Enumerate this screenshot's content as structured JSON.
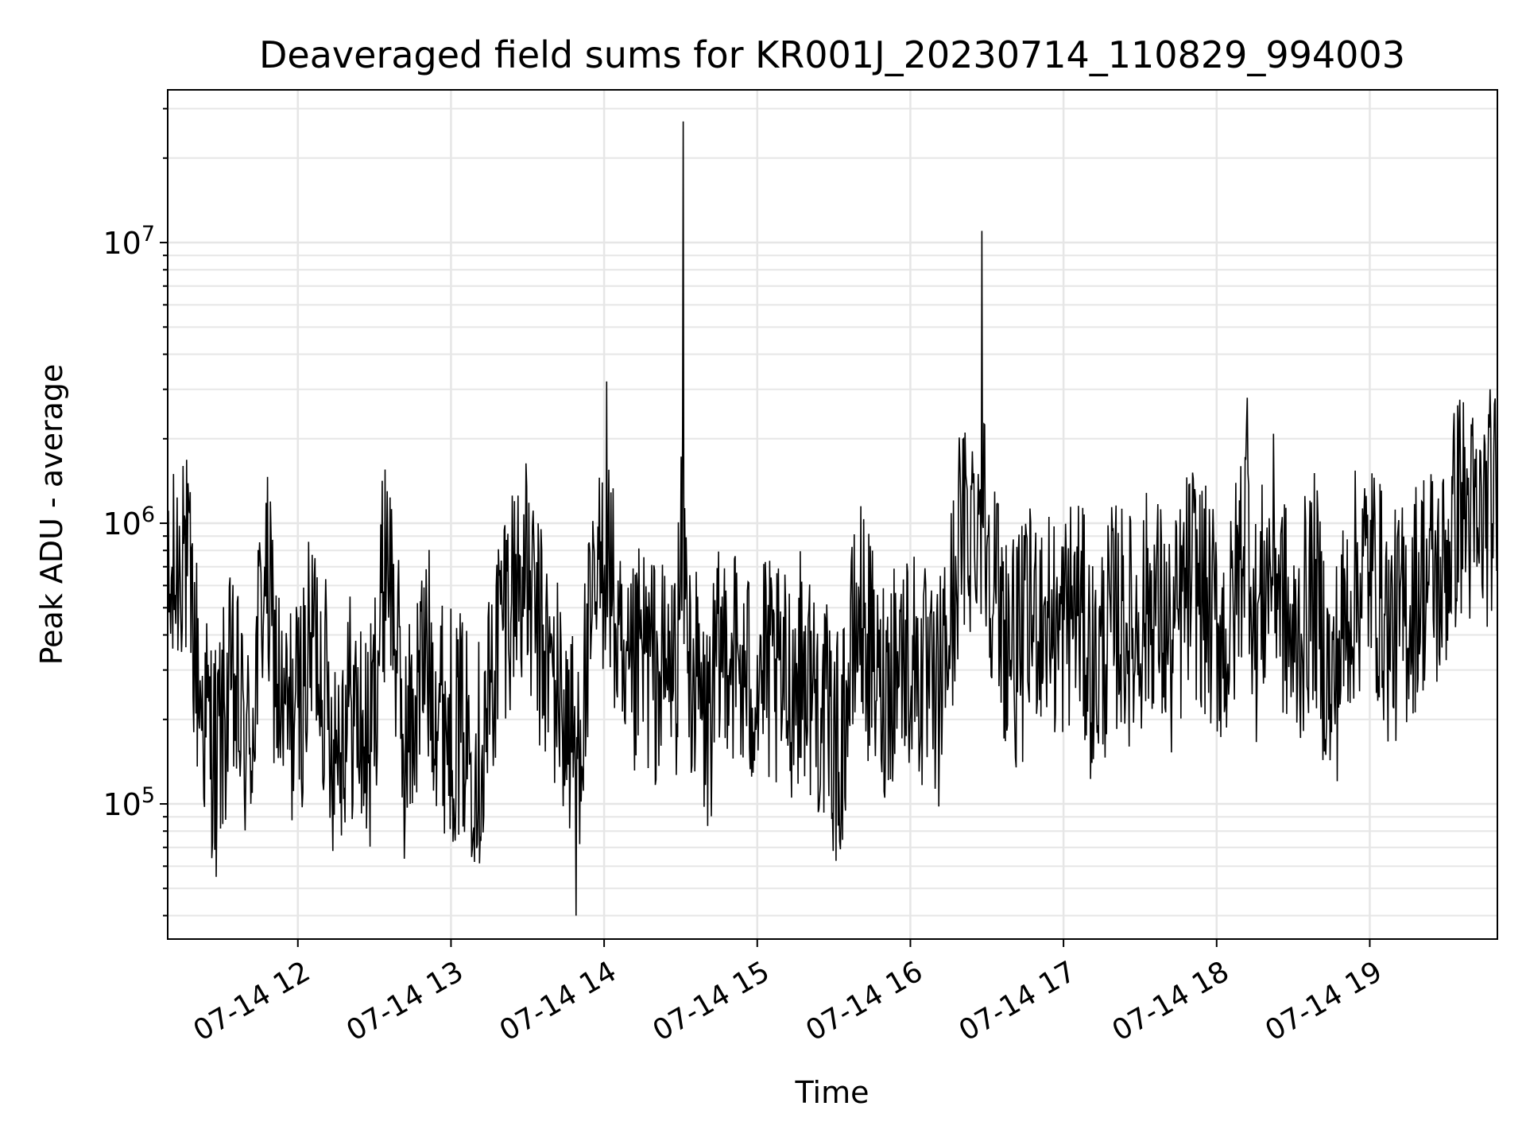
{
  "chart_data": {
    "type": "line",
    "title": "Deaveraged field sums for KR001J_20230714_110829_994003",
    "xlabel": "Time",
    "ylabel": "Peak ADU - average",
    "x_scale": "time",
    "y_scale": "log",
    "xlim": [
      "2023-07-14 11:09",
      "2023-07-14 19:50"
    ],
    "ylim": [
      33000,
      35000000
    ],
    "x_ticks": [
      "07-14 12",
      "07-14 13",
      "07-14 14",
      "07-14 15",
      "07-14 16",
      "07-14 17",
      "07-14 18",
      "07-14 19"
    ],
    "y_ticks": [
      {
        "base": "10",
        "exp": "5",
        "value": 100000
      },
      {
        "base": "10",
        "exp": "6",
        "value": 1000000
      },
      {
        "base": "10",
        "exp": "7",
        "value": 10000000
      }
    ],
    "grid": true,
    "line_color": "#000000",
    "series": [
      {
        "x": [
          "11:09",
          "11:15",
          "11:22",
          "11:28",
          "11:34",
          "11:41",
          "11:47",
          "11:54",
          "12:00",
          "12:07",
          "12:14",
          "12:21",
          "12:28",
          "12:35",
          "12:42",
          "12:50",
          "12:58",
          "13:05",
          "13:12",
          "13:20",
          "13:28",
          "13:35",
          "13:42",
          "13:49",
          "13:55",
          "14:01",
          "14:08",
          "14:15",
          "14:22",
          "14:28",
          "14:31",
          "14:33",
          "14:40",
          "14:48",
          "14:55",
          "15:02",
          "15:10",
          "15:18",
          "15:25",
          "15:32",
          "15:40",
          "15:48",
          "15:55",
          "16:02",
          "16:10",
          "16:18",
          "16:28",
          "16:35",
          "16:42",
          "16:50",
          "16:58",
          "17:05",
          "17:12",
          "17:20",
          "17:28",
          "17:35",
          "17:42",
          "17:50",
          "17:58",
          "18:05",
          "18:12",
          "18:15",
          "18:22",
          "18:30",
          "18:38",
          "18:45",
          "18:52",
          "19:00",
          "19:08",
          "19:15",
          "19:22",
          "19:28",
          "19:35",
          "19:42",
          "19:48",
          "19:50"
        ],
        "y": [
          450000,
          1600000,
          230000,
          55000,
          260000,
          150000,
          700000,
          190000,
          220000,
          420000,
          170000,
          230000,
          150000,
          1300000,
          90000,
          350000,
          200000,
          180000,
          140000,
          500000,
          700000,
          380000,
          250000,
          40000,
          400000,
          3200000,
          200000,
          350000,
          280000,
          300000,
          27000000,
          350000,
          180000,
          420000,
          260000,
          300000,
          250000,
          320000,
          220000,
          130000,
          500000,
          240000,
          350000,
          320000,
          210000,
          600000,
          11000000,
          350000,
          250000,
          380000,
          300000,
          400000,
          210000,
          350000,
          300000,
          420000,
          260000,
          500000,
          340000,
          280000,
          2800000,
          300000,
          600000,
          250000,
          450000,
          180000,
          400000,
          550000,
          300000,
          360000,
          500000,
          450000,
          2300000,
          700000,
          1000000,
          850000
        ]
      }
    ]
  }
}
